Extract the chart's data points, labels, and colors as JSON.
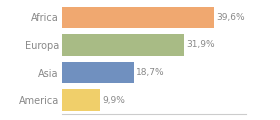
{
  "categories": [
    "Africa",
    "Europa",
    "Asia",
    "America"
  ],
  "values": [
    39.6,
    31.9,
    18.7,
    9.9
  ],
  "labels": [
    "39,6%",
    "31,9%",
    "18,7%",
    "9,9%"
  ],
  "bar_colors": [
    "#f0a870",
    "#a8bb85",
    "#7090bf",
    "#f0cf6a"
  ],
  "background_color": "#ffffff",
  "xlim": [
    0,
    48
  ],
  "bar_height": 0.78,
  "label_fontsize": 6.5,
  "tick_fontsize": 7.0,
  "tick_color": "#888888",
  "label_color": "#888888",
  "spine_color": "#cccccc"
}
